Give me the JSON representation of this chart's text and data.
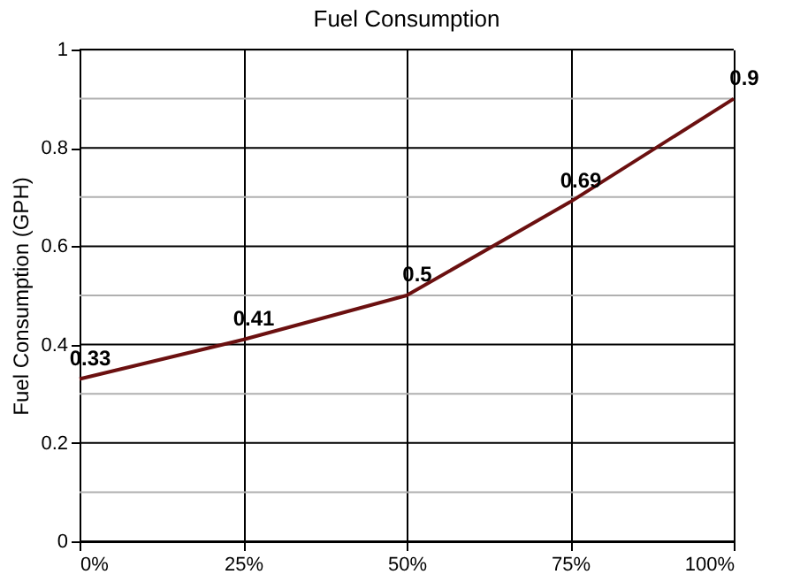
{
  "chart_data": {
    "type": "line",
    "title": "Fuel Consumption",
    "ylabel": "Fuel Consumption (GPH)",
    "x": [
      0,
      25,
      50,
      75,
      100
    ],
    "series": [
      {
        "color": "#6b1010",
        "values": [
          0.33,
          0.41,
          0.5,
          0.69,
          0.9
        ]
      }
    ],
    "xlim": [
      0,
      100
    ],
    "xticks": [
      {
        "value": 0,
        "label": "0%"
      },
      {
        "value": 25,
        "label": "25%"
      },
      {
        "value": 50,
        "label": "50%"
      },
      {
        "value": 75,
        "label": "75%"
      },
      {
        "value": 100,
        "label": "100%"
      }
    ],
    "ylim": [
      0,
      1
    ],
    "yticks": [
      0,
      {
        "value": 0.1,
        "label": null
      },
      0.2,
      {
        "value": 0.3,
        "label": null
      },
      0.4,
      {
        "value": 0.5,
        "label": null
      },
      0.6,
      {
        "value": 0.7,
        "label": null
      },
      0.8,
      {
        "value": 0.9,
        "label": null
      },
      1
    ],
    "grid": true,
    "data_labels": true,
    "marker": "none",
    "line_style": "solid",
    "legend": false
  }
}
